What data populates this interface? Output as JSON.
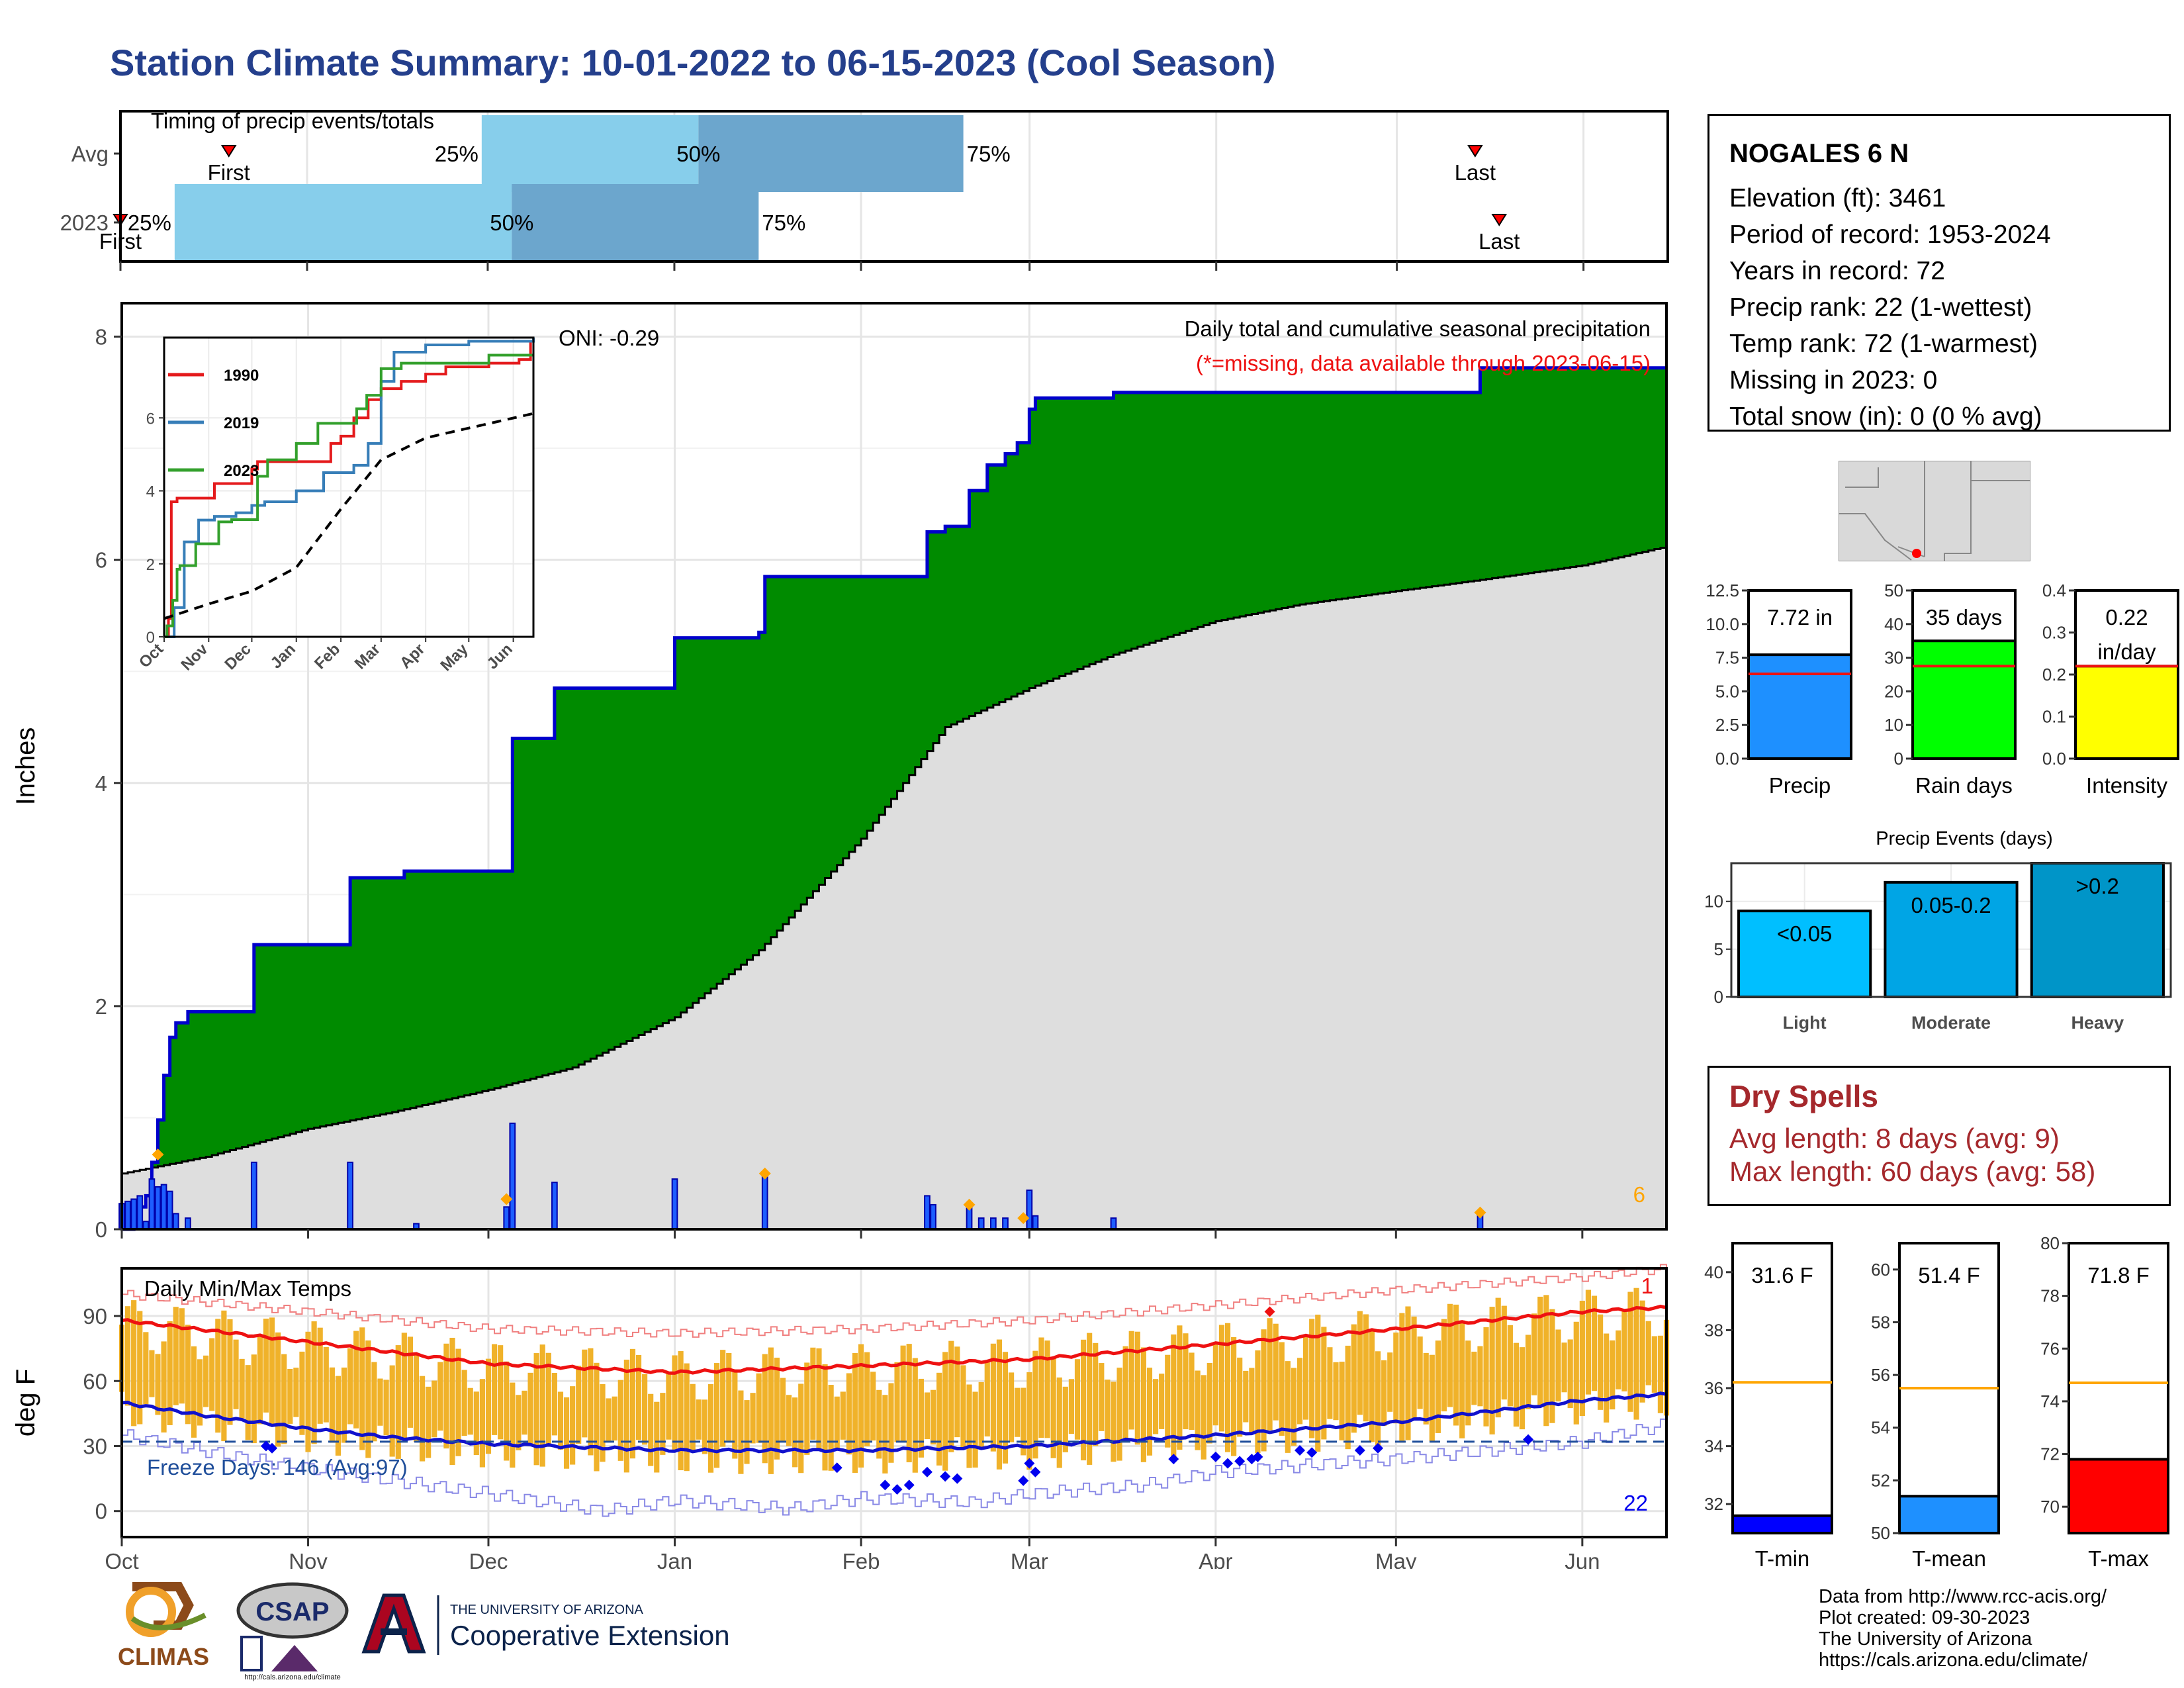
{
  "title": "Station Climate Summary: 10-01-2022 to 06-15-2023 (Cool Season)",
  "station": {
    "name": "NOGALES 6 N",
    "lines": [
      "Elevation (ft): 3461",
      "Period of record: 1953-2024",
      "Years in record: 72",
      "Precip rank: 22 (1-wettest)",
      "Temp rank: 72 (1-warmest)",
      "Missing in 2023: 0",
      "Total snow (in): 0 (0 % avg)"
    ]
  },
  "colors": {
    "title": "#243f8c",
    "green_fill": "#008b00",
    "gray_fill": "#dedede",
    "cum_line": "#0000cc",
    "bar_fill": "#1e5eff",
    "temp_bar": "#f0b22a",
    "max_line": "#ee1111",
    "min_line": "#1111cc",
    "light_blue": "#87ceeb",
    "mid_blue": "#6ca6cd",
    "dry_text": "#a5282c",
    "orange_marker": "#ffa500"
  },
  "icons": [
    "red-triangle-marker-icon",
    "arizona-map-icon",
    "climas-logo",
    "csap-logo",
    "university-of-arizona-logo"
  ],
  "chart_data": [
    {
      "id": "timing",
      "type": "bar",
      "title": "Timing of precip events/totals",
      "rows": [
        {
          "label": "Avg",
          "first": "10-19",
          "last": "05-14",
          "p25": "11-30",
          "p50": "01-05",
          "p75": "02-18",
          "first_label": "First",
          "last_label": "Last",
          "p25_label": "25%",
          "p50_label": "50%",
          "p75_label": "75%"
        },
        {
          "label": "2023",
          "first": "10-01",
          "last": "05-18",
          "p25": "10-10",
          "p50": "12-05",
          "p75": "01-15",
          "first_label": "First",
          "last_label": "Last",
          "p25_label": "25%",
          "p50_label": "50%",
          "p75_label": "75%"
        }
      ]
    },
    {
      "id": "precip",
      "type": "area",
      "title": "Daily total and cumulative seasonal precipitation",
      "subtitle": "(*=missing, data available through 2023-06-15)",
      "annotation": "ONI: -0.29",
      "corner_label": "6",
      "ylabel": "Inches",
      "ylim": [
        0,
        8.3
      ],
      "yticks": [
        0,
        2,
        4,
        6,
        8
      ],
      "xlim": [
        "10-01",
        "06-15"
      ],
      "xticks": [
        "Oct",
        "Nov",
        "Dec",
        "Jan",
        "Feb",
        "Mar",
        "Apr",
        "May",
        "Jun"
      ],
      "cumulative_2023": [
        [
          "10-01",
          0.0
        ],
        [
          "10-03",
          0.2
        ],
        [
          "10-05",
          0.3
        ],
        [
          "10-06",
          0.6
        ],
        [
          "10-07",
          0.98
        ],
        [
          "10-08",
          1.38
        ],
        [
          "10-09",
          1.72
        ],
        [
          "10-10",
          1.85
        ],
        [
          "10-12",
          1.95
        ],
        [
          "10-23",
          2.55
        ],
        [
          "11-08",
          3.15
        ],
        [
          "11-17",
          3.21
        ],
        [
          "12-05",
          4.4
        ],
        [
          "12-12",
          4.85
        ],
        [
          "01-01",
          5.3
        ],
        [
          "01-15",
          5.35
        ],
        [
          "01-16",
          5.85
        ],
        [
          "02-12",
          6.25
        ],
        [
          "02-15",
          6.3
        ],
        [
          "02-19",
          6.62
        ],
        [
          "02-22",
          6.85
        ],
        [
          "02-25",
          6.95
        ],
        [
          "02-27",
          7.05
        ],
        [
          "03-01",
          7.35
        ],
        [
          "03-02",
          7.45
        ],
        [
          "03-15",
          7.5
        ],
        [
          "05-15",
          7.72
        ],
        [
          "06-15",
          7.72
        ]
      ],
      "average_cumulative": [
        [
          "10-01",
          0.5
        ],
        [
          "10-15",
          0.65
        ],
        [
          "11-01",
          0.9
        ],
        [
          "11-15",
          1.05
        ],
        [
          "12-01",
          1.25
        ],
        [
          "12-15",
          1.45
        ],
        [
          "01-01",
          1.9
        ],
        [
          "01-15",
          2.5
        ],
        [
          "02-01",
          3.5
        ],
        [
          "02-15",
          4.5
        ],
        [
          "03-01",
          4.85
        ],
        [
          "03-15",
          5.15
        ],
        [
          "04-01",
          5.45
        ],
        [
          "04-15",
          5.6
        ],
        [
          "05-01",
          5.72
        ],
        [
          "05-15",
          5.82
        ],
        [
          "06-01",
          5.95
        ],
        [
          "06-15",
          6.12
        ]
      ],
      "daily_bars": [
        [
          "10-01",
          0.23
        ],
        [
          "10-02",
          0.25
        ],
        [
          "10-03",
          0.27
        ],
        [
          "10-04",
          0.3
        ],
        [
          "10-05",
          0.07
        ],
        [
          "10-06",
          0.45
        ],
        [
          "10-07",
          0.38
        ],
        [
          "10-08",
          0.4
        ],
        [
          "10-09",
          0.34
        ],
        [
          "10-10",
          0.14
        ],
        [
          "10-12",
          0.1
        ],
        [
          "10-23",
          0.6
        ],
        [
          "11-08",
          0.6
        ],
        [
          "11-19",
          0.05
        ],
        [
          "12-04",
          0.2
        ],
        [
          "12-05",
          0.95
        ],
        [
          "12-12",
          0.42
        ],
        [
          "01-01",
          0.45
        ],
        [
          "01-16",
          0.5
        ],
        [
          "02-12",
          0.3
        ],
        [
          "02-13",
          0.22
        ],
        [
          "02-19",
          0.22
        ],
        [
          "02-21",
          0.1
        ],
        [
          "02-23",
          0.1
        ],
        [
          "02-25",
          0.1
        ],
        [
          "03-01",
          0.35
        ],
        [
          "03-02",
          0.12
        ],
        [
          "03-15",
          0.1
        ],
        [
          "05-15",
          0.15
        ]
      ],
      "event_markers": [
        [
          "10-07",
          0.67
        ],
        [
          "12-04",
          0.27
        ],
        [
          "01-16",
          0.5
        ],
        [
          "02-19",
          0.22
        ],
        [
          "02-28",
          0.1
        ],
        [
          "05-15",
          0.15
        ]
      ],
      "inset": {
        "type": "line",
        "ylim": [
          0,
          8.2
        ],
        "yticks": [
          0,
          2,
          4,
          6
        ],
        "xticks": [
          "Oct",
          "Nov",
          "Dec",
          "Jan",
          "Feb",
          "Mar",
          "Apr",
          "May",
          "Jun"
        ],
        "series": [
          {
            "name": "1990",
            "color": "#e41a1c",
            "points": [
              [
                "10-01",
                0
              ],
              [
                "10-04",
                0.5
              ],
              [
                "10-06",
                3.7
              ],
              [
                "10-10",
                3.8
              ],
              [
                "10-20",
                3.8
              ],
              [
                "11-05",
                4.2
              ],
              [
                "12-01",
                4.6
              ],
              [
                "12-05",
                4.8
              ],
              [
                "01-10",
                4.8
              ],
              [
                "01-25",
                5.3
              ],
              [
                "02-01",
                5.5
              ],
              [
                "02-10",
                6.0
              ],
              [
                "02-20",
                6.5
              ],
              [
                "03-01",
                6.8
              ],
              [
                "03-15",
                7.0
              ],
              [
                "04-01",
                7.2
              ],
              [
                "04-15",
                7.4
              ],
              [
                "05-15",
                7.5
              ],
              [
                "06-05",
                7.6
              ],
              [
                "06-13",
                8.1
              ]
            ]
          },
          {
            "name": "2019",
            "color": "#377eb8",
            "points": [
              [
                "10-01",
                0
              ],
              [
                "10-08",
                0.8
              ],
              [
                "10-15",
                2.6
              ],
              [
                "10-25",
                3.2
              ],
              [
                "11-05",
                3.3
              ],
              [
                "11-20",
                3.4
              ],
              [
                "12-01",
                3.6
              ],
              [
                "12-10",
                3.7
              ],
              [
                "01-01",
                4.0
              ],
              [
                "01-20",
                4.5
              ],
              [
                "02-10",
                4.7
              ],
              [
                "02-20",
                5.3
              ],
              [
                "03-01",
                7.0
              ],
              [
                "03-10",
                7.8
              ],
              [
                "04-01",
                8.0
              ],
              [
                "05-01",
                8.1
              ],
              [
                "06-15",
                8.2
              ]
            ]
          },
          {
            "name": "2023",
            "color": "#33a02c",
            "points": [
              [
                "10-01",
                0
              ],
              [
                "10-03",
                0.3
              ],
              [
                "10-07",
                1.0
              ],
              [
                "10-10",
                1.85
              ],
              [
                "10-12",
                1.95
              ],
              [
                "10-23",
                2.55
              ],
              [
                "11-08",
                3.15
              ],
              [
                "11-17",
                3.21
              ],
              [
                "12-05",
                4.4
              ],
              [
                "12-12",
                4.85
              ],
              [
                "01-01",
                5.3
              ],
              [
                "01-16",
                5.85
              ],
              [
                "02-12",
                6.25
              ],
              [
                "02-19",
                6.62
              ],
              [
                "03-01",
                7.35
              ],
              [
                "03-15",
                7.5
              ],
              [
                "05-15",
                7.72
              ],
              [
                "06-15",
                7.72
              ]
            ]
          },
          {
            "name": "",
            "color": "#000000",
            "dashed": true,
            "points": [
              [
                "10-01",
                0.5
              ],
              [
                "11-01",
                0.9
              ],
              [
                "12-01",
                1.25
              ],
              [
                "01-01",
                1.9
              ],
              [
                "02-01",
                3.5
              ],
              [
                "03-01",
                4.85
              ],
              [
                "04-01",
                5.45
              ],
              [
                "05-01",
                5.72
              ],
              [
                "06-15",
                6.12
              ]
            ]
          }
        ]
      }
    },
    {
      "id": "temps",
      "type": "bar",
      "title": "Daily Min/Max Temps",
      "ylabel": "deg F",
      "ylim": [
        -12,
        112
      ],
      "yticks": [
        0,
        30,
        60,
        90
      ],
      "xticks": [
        "Oct",
        "Nov",
        "Dec",
        "Jan",
        "Feb",
        "Mar",
        "Apr",
        "May",
        "Jun"
      ],
      "freeze_label": "Freeze Days: 146 (Avg:97)",
      "freeze_line": 32,
      "corner_top": "1",
      "corner_bottom": "22",
      "avg_max": [
        [
          "10-01",
          88
        ],
        [
          "11-01",
          78
        ],
        [
          "12-01",
          68
        ],
        [
          "01-01",
          64
        ],
        [
          "02-01",
          67
        ],
        [
          "03-01",
          70
        ],
        [
          "04-01",
          77
        ],
        [
          "05-01",
          84
        ],
        [
          "06-01",
          92
        ],
        [
          "06-15",
          94
        ]
      ],
      "avg_min": [
        [
          "10-01",
          50
        ],
        [
          "10-15",
          44
        ],
        [
          "11-01",
          38
        ],
        [
          "11-15",
          34
        ],
        [
          "12-01",
          31
        ],
        [
          "01-01",
          28
        ],
        [
          "02-01",
          28
        ],
        [
          "03-01",
          30
        ],
        [
          "04-01",
          35
        ],
        [
          "05-01",
          41
        ],
        [
          "06-01",
          51
        ],
        [
          "06-15",
          54
        ]
      ],
      "record_max": [
        [
          "10-01",
          100
        ],
        [
          "11-01",
          92
        ],
        [
          "12-01",
          84
        ],
        [
          "01-01",
          82
        ],
        [
          "02-01",
          84
        ],
        [
          "03-01",
          88
        ],
        [
          "04-01",
          95
        ],
        [
          "05-01",
          102
        ],
        [
          "06-01",
          108
        ],
        [
          "06-15",
          112
        ]
      ],
      "record_min": [
        [
          "10-01",
          35
        ],
        [
          "10-20",
          25
        ],
        [
          "11-10",
          16
        ],
        [
          "12-01",
          8
        ],
        [
          "12-20",
          0
        ],
        [
          "01-01",
          5
        ],
        [
          "01-20",
          1
        ],
        [
          "02-01",
          6
        ],
        [
          "02-20",
          4
        ],
        [
          "03-01",
          8
        ],
        [
          "03-20",
          12
        ],
        [
          "04-01",
          18
        ],
        [
          "04-20",
          22
        ],
        [
          "05-01",
          24
        ],
        [
          "06-01",
          32
        ],
        [
          "06-15",
          40
        ]
      ]
    },
    {
      "id": "precip-stats",
      "type": "bar",
      "panels": [
        {
          "name": "Precip",
          "value": 7.72,
          "avg": 6.3,
          "label": "7.72 in",
          "ylim": [
            0,
            12.5
          ],
          "yticks": [
            "0.0",
            "2.5",
            "5.0",
            "7.5",
            "10.0",
            "12.5"
          ],
          "color": "#1e90ff"
        },
        {
          "name": "Rain days",
          "value": 35,
          "avg": 27.5,
          "label": "35 days",
          "ylim": [
            0,
            50
          ],
          "yticks": [
            "0",
            "10",
            "20",
            "30",
            "40",
            "50"
          ],
          "color": "#00ff00"
        },
        {
          "name": "Intensity",
          "value": 0.22,
          "avg": 0.22,
          "label": "0.22",
          "label2": "in/day",
          "ylim": [
            0,
            0.4
          ],
          "yticks": [
            "0.0",
            "0.1",
            "0.2",
            "0.3",
            "0.4"
          ],
          "color": "#ffff00"
        }
      ]
    },
    {
      "id": "events",
      "type": "bar",
      "title": "Precip Events (days)",
      "categories": [
        "Light",
        "Moderate",
        "Heavy"
      ],
      "values": [
        9,
        12,
        14
      ],
      "bar_labels": [
        "<0.05",
        "0.05-0.2",
        ">0.2"
      ],
      "colors": [
        "#00bfff",
        "#00a5e5",
        "#0095c8"
      ],
      "ylim": [
        0,
        14
      ],
      "yticks": [
        0,
        5,
        10
      ]
    },
    {
      "id": "temp-stats",
      "type": "bar",
      "panels": [
        {
          "name": "T-min",
          "value": 31.6,
          "avg": 36.2,
          "label": "31.6 F",
          "ylim": [
            31,
            41
          ],
          "yticks": [
            32,
            34,
            36,
            38,
            40
          ],
          "color": "#0000ff"
        },
        {
          "name": "T-mean",
          "value": 51.4,
          "avg": 55.5,
          "label": "51.4 F",
          "ylim": [
            50,
            61
          ],
          "yticks": [
            50,
            52,
            54,
            56,
            58,
            60
          ],
          "color": "#1e90ff"
        },
        {
          "name": "T-max",
          "value": 71.8,
          "avg": 74.7,
          "label": "71.8 F",
          "ylim": [
            69,
            80
          ],
          "yticks": [
            70,
            72,
            74,
            76,
            78,
            80
          ],
          "color": "#ff0000"
        }
      ]
    }
  ],
  "dry_spells": {
    "title": "Dry Spells",
    "avg_line": "Avg length: 8 days (avg: 9)",
    "max_line": "Max length: 60 days (avg: 58)"
  },
  "credits": [
    "Data from http://www.rcc-acis.org/",
    "Plot created: 09-30-2023",
    "The University of Arizona",
    "https://cals.arizona.edu/climate/"
  ],
  "logos": {
    "climas": "CLIMAS",
    "csap": "CSAP",
    "csap_url": "http://cals.arizona.edu/climate",
    "ua_top": "THE UNIVERSITY OF ARIZONA",
    "ua_bottom": "Cooperative Extension"
  }
}
